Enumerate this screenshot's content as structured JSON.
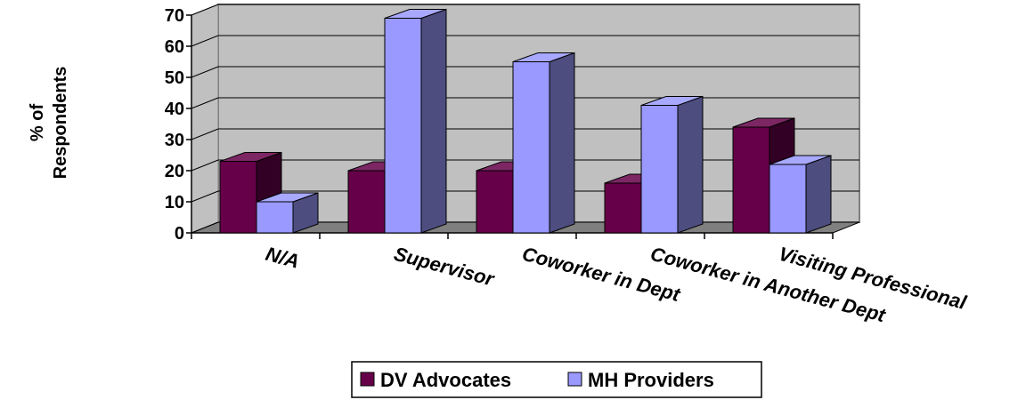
{
  "chart_data": {
    "type": "bar3d",
    "y_label": [
      "% of",
      "Respondents"
    ],
    "categories": [
      "N/A",
      "Supervisor",
      "Coworker in Dept",
      "Coworker in Another Dept",
      "Visiting Professional"
    ],
    "series": [
      {
        "name": "DV Advocates",
        "color": "#660049",
        "values": [
          23,
          20,
          20,
          16,
          34
        ]
      },
      {
        "name": "MH Providers",
        "color": "#9999ff",
        "values": [
          10,
          69,
          55,
          41,
          22
        ]
      }
    ],
    "ylim": [
      0,
      70
    ],
    "yticks": [
      0,
      10,
      20,
      30,
      40,
      50,
      60,
      70
    ],
    "grid": true,
    "legend": "bottom"
  }
}
